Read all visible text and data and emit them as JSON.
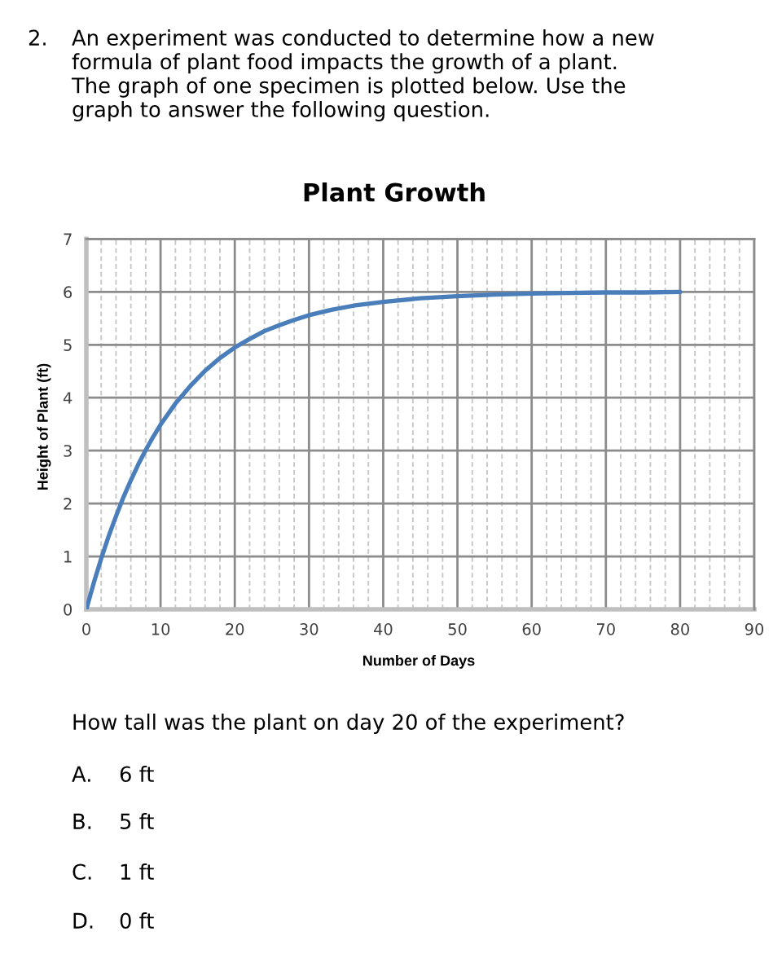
{
  "chart_data": {
    "type": "line",
    "title": "Plant Growth",
    "xlabel": "Number of Days",
    "ylabel": "Height of Plant (ft)",
    "x": [
      0,
      1,
      2,
      3,
      4,
      5,
      6,
      7,
      8,
      9,
      10,
      12,
      14,
      16,
      18,
      20,
      22,
      24,
      26,
      28,
      30,
      33,
      36,
      40,
      45,
      50,
      55,
      60,
      65,
      70,
      75,
      80
    ],
    "series": [
      {
        "color": "#4a7ebb",
        "values": [
          0,
          0.5,
          0.96,
          1.38,
          1.76,
          2.12,
          2.44,
          2.74,
          3.01,
          3.26,
          3.49,
          3.89,
          4.22,
          4.51,
          4.75,
          4.95,
          5.11,
          5.26,
          5.37,
          5.47,
          5.56,
          5.66,
          5.74,
          5.81,
          5.88,
          5.92,
          5.95,
          5.97,
          5.98,
          5.99,
          5.99,
          6.0
        ]
      }
    ],
    "xlim": [
      0,
      90
    ],
    "ylim": [
      0,
      7
    ],
    "xticks": [
      0,
      {
        "value": 2,
        "label": null
      },
      {
        "value": 4,
        "label": null
      },
      {
        "value": 6,
        "label": null
      },
      {
        "value": 8,
        "label": null
      },
      10,
      {
        "value": 12,
        "label": null
      },
      {
        "value": 14,
        "label": null
      },
      {
        "value": 16,
        "label": null
      },
      {
        "value": 18,
        "label": null
      },
      20,
      {
        "value": 22,
        "label": null
      },
      {
        "value": 24,
        "label": null
      },
      {
        "value": 26,
        "label": null
      },
      {
        "value": 28,
        "label": null
      },
      30,
      {
        "value": 32,
        "label": null
      },
      {
        "value": 34,
        "label": null
      },
      {
        "value": 36,
        "label": null
      },
      {
        "value": 38,
        "label": null
      },
      40,
      {
        "value": 42,
        "label": null
      },
      {
        "value": 44,
        "label": null
      },
      {
        "value": 46,
        "label": null
      },
      {
        "value": 48,
        "label": null
      },
      50,
      {
        "value": 52,
        "label": null
      },
      {
        "value": 54,
        "label": null
      },
      {
        "value": 56,
        "label": null
      },
      {
        "value": 58,
        "label": null
      },
      60,
      {
        "value": 62,
        "label": null
      },
      {
        "value": 64,
        "label": null
      },
      {
        "value": 66,
        "label": null
      },
      {
        "value": 68,
        "label": null
      },
      70,
      {
        "value": 72,
        "label": null
      },
      {
        "value": 74,
        "label": null
      },
      {
        "value": 76,
        "label": null
      },
      {
        "value": 78,
        "label": null
      },
      80,
      {
        "value": 82,
        "label": null
      },
      {
        "value": 84,
        "label": null
      },
      {
        "value": 86,
        "label": null
      },
      {
        "value": 88,
        "label": null
      },
      90
    ],
    "yticks": [
      0,
      1,
      2,
      3,
      4,
      5,
      6,
      7
    ],
    "grid": true,
    "annotations": [
      "2.",
      "An experiment was conducted to determine how a new formula of plant food impacts the growth of a plant. The graph of one specimen is plotted below. Use the graph to answer the following question.",
      "How tall was the plant on day 20 of the experiment?",
      "A.",
      "6 ft",
      "B.",
      "5 ft",
      "C.",
      "1 ft",
      "D.",
      "0 ft"
    ]
  }
}
